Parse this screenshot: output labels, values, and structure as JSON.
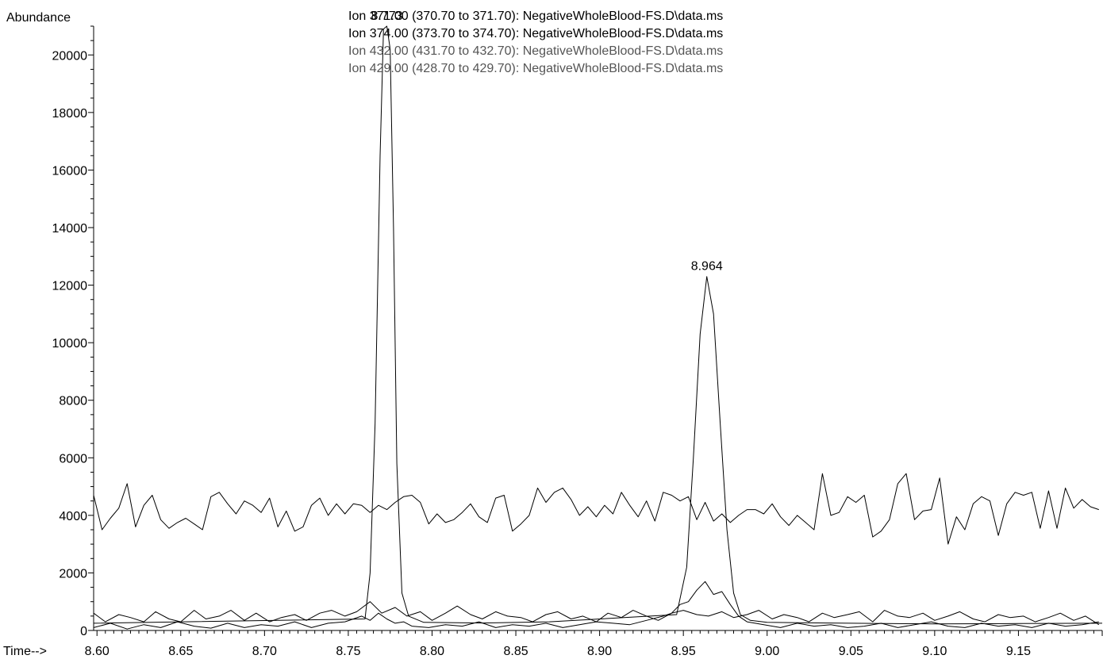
{
  "chart_data": {
    "type": "line",
    "ylabel": "Abundance",
    "xlabel": "Time-->",
    "xlim": [
      8.598,
      9.2
    ],
    "ylim": [
      0,
      21000
    ],
    "x_ticks": [
      "8.60",
      "8.65",
      "8.70",
      "8.75",
      "8.80",
      "8.85",
      "8.90",
      "8.95",
      "9.00",
      "9.05",
      "9.10",
      "9.15"
    ],
    "y_ticks": [
      "0",
      "2000",
      "4000",
      "6000",
      "8000",
      "10000",
      "12000",
      "14000",
      "16000",
      "18000",
      "20000"
    ],
    "legend": [
      "Ion 371.00 (370.70 to 371.70): NegativeWholeBlood-FS.D\\data.ms",
      "Ion 374.00 (373.70 to 374.70): NegativeWholeBlood-FS.D\\data.ms",
      "Ion 432.00 (431.70 to 432.70): NegativeWholeBlood-FS.D\\data.ms",
      "Ion 429.00 (428.70 to 429.70): NegativeWholeBlood-FS.D\\data.ms"
    ],
    "peak_labels": [
      {
        "x": 8.773,
        "y": 21000,
        "text": "8.773"
      },
      {
        "x": 8.964,
        "y": 12300,
        "text": "8.964"
      }
    ],
    "series": [
      {
        "color": "#000000",
        "x": [
          8.598,
          8.76,
          8.763,
          8.766,
          8.769,
          8.771,
          8.773,
          8.775,
          8.777,
          8.779,
          8.782,
          8.786,
          8.795,
          8.83,
          8.87,
          8.946,
          8.952,
          8.956,
          8.96,
          8.964,
          8.968,
          8.972,
          8.976,
          8.98,
          8.984,
          8.99,
          9.0,
          9.05,
          9.1,
          9.15,
          9.2
        ],
        "values": [
          250,
          400,
          2000,
          7200,
          16500,
          20900,
          21000,
          20200,
          14000,
          5800,
          1300,
          500,
          280,
          260,
          300,
          550,
          2200,
          6000,
          10300,
          12300,
          11000,
          7200,
          3500,
          1300,
          550,
          350,
          280,
          250,
          230,
          240,
          250
        ]
      },
      {
        "color": "#000000",
        "x": [
          8.598,
          8.603,
          8.608,
          8.613,
          8.618,
          8.623,
          8.628,
          8.633,
          8.638,
          8.643,
          8.648,
          8.653,
          8.658,
          8.663,
          8.668,
          8.673,
          8.678,
          8.683,
          8.688,
          8.693,
          8.698,
          8.703,
          8.708,
          8.713,
          8.718,
          8.723,
          8.728,
          8.733,
          8.738,
          8.743,
          8.748,
          8.753,
          8.758,
          8.763,
          8.768,
          8.773,
          8.778,
          8.783,
          8.788,
          8.793,
          8.798,
          8.803,
          8.808,
          8.813,
          8.818,
          8.823,
          8.828,
          8.833,
          8.838,
          8.843,
          8.848,
          8.853,
          8.858,
          8.863,
          8.868,
          8.873,
          8.878,
          8.883,
          8.888,
          8.893,
          8.898,
          8.903,
          8.908,
          8.913,
          8.918,
          8.923,
          8.928,
          8.933,
          8.938,
          8.943,
          8.948,
          8.953,
          8.958,
          8.963,
          8.968,
          8.973,
          8.978,
          8.983,
          8.988,
          8.993,
          8.998,
          9.003,
          9.008,
          9.013,
          9.018,
          9.023,
          9.028,
          9.033,
          9.038,
          9.043,
          9.048,
          9.053,
          9.058,
          9.063,
          9.068,
          9.073,
          9.078,
          9.083,
          9.088,
          9.093,
          9.098,
          9.103,
          9.108,
          9.113,
          9.118,
          9.123,
          9.128,
          9.133,
          9.138,
          9.143,
          9.148,
          9.153,
          9.158,
          9.163,
          9.168,
          9.173,
          9.178,
          9.183,
          9.188,
          9.193,
          9.198
        ],
        "values": [
          4700,
          3500,
          3900,
          4250,
          5100,
          3600,
          4350,
          4700,
          3850,
          3550,
          3750,
          3900,
          3700,
          3500,
          4650,
          4800,
          4400,
          4050,
          4500,
          4350,
          4100,
          4600,
          3600,
          4150,
          3450,
          3600,
          4350,
          4600,
          4000,
          4400,
          4050,
          4400,
          4350,
          4100,
          4350,
          4200,
          4450,
          4650,
          4700,
          4450,
          3700,
          4050,
          3750,
          3850,
          4100,
          4400,
          3950,
          3750,
          4600,
          4700,
          3450,
          3700,
          4000,
          4950,
          4450,
          4800,
          4950,
          4550,
          4000,
          4300,
          3950,
          4350,
          4050,
          4800,
          4350,
          3950,
          4500,
          3800,
          4800,
          4700,
          4500,
          4650,
          3850,
          4450,
          3800,
          4050,
          3750,
          4000,
          4200,
          4200,
          4050,
          4400,
          3950,
          3650,
          4000,
          3750,
          3500,
          5450,
          4000,
          4100,
          4650,
          4450,
          4700,
          3250,
          3450,
          3850,
          5100,
          5450,
          3850,
          4150,
          4200,
          5300,
          3000,
          3950,
          3500,
          4400,
          4650,
          4500,
          3300,
          4400,
          4800,
          4700,
          4800,
          3550,
          4850,
          3550,
          4950,
          4250,
          4550,
          4300,
          4200
        ]
      },
      {
        "color": "#000000",
        "x": [
          8.598,
          8.608,
          8.618,
          8.628,
          8.638,
          8.648,
          8.658,
          8.668,
          8.678,
          8.688,
          8.698,
          8.708,
          8.718,
          8.728,
          8.738,
          8.748,
          8.758,
          8.763,
          8.768,
          8.773,
          8.778,
          8.783,
          8.788,
          8.798,
          8.808,
          8.818,
          8.828,
          8.838,
          8.848,
          8.858,
          8.868,
          8.878,
          8.888,
          8.898,
          8.908,
          8.918,
          8.928,
          8.938,
          8.943,
          8.948,
          8.953,
          8.958,
          8.963,
          8.968,
          8.973,
          8.978,
          8.983,
          8.988,
          8.998,
          9.008,
          9.018,
          9.028,
          9.038,
          9.048,
          9.058,
          9.068,
          9.078,
          9.088,
          9.098,
          9.108,
          9.118,
          9.128,
          9.138,
          9.148,
          9.158,
          9.168,
          9.178,
          9.188,
          9.198
        ],
        "values": [
          100,
          250,
          50,
          200,
          100,
          300,
          150,
          80,
          250,
          100,
          200,
          150,
          300,
          100,
          250,
          300,
          500,
          350,
          600,
          400,
          250,
          300,
          150,
          100,
          200,
          150,
          300,
          100,
          200,
          150,
          250,
          100,
          200,
          300,
          250,
          200,
          350,
          500,
          600,
          900,
          1000,
          1400,
          1700,
          1250,
          1350,
          900,
          500,
          300,
          200,
          100,
          250,
          150,
          200,
          100,
          150,
          250,
          100,
          200,
          300,
          150,
          100,
          250,
          150,
          200,
          100,
          250,
          150,
          200,
          300
        ]
      },
      {
        "color": "#000000",
        "x": [
          8.598,
          8.605,
          8.613,
          8.62,
          8.628,
          8.635,
          8.643,
          8.65,
          8.658,
          8.665,
          8.673,
          8.68,
          8.688,
          8.695,
          8.703,
          8.71,
          8.718,
          8.725,
          8.733,
          8.74,
          8.748,
          8.755,
          8.763,
          8.77,
          8.778,
          8.785,
          8.793,
          8.8,
          8.808,
          8.815,
          8.823,
          8.83,
          8.838,
          8.845,
          8.853,
          8.86,
          8.868,
          8.875,
          8.883,
          8.89,
          8.898,
          8.905,
          8.913,
          8.92,
          8.928,
          8.935,
          8.943,
          8.95,
          8.958,
          8.965,
          8.973,
          8.98,
          8.988,
          8.995,
          9.003,
          9.01,
          9.018,
          9.025,
          9.033,
          9.04,
          9.048,
          9.055,
          9.063,
          9.07,
          9.078,
          9.085,
          9.093,
          9.1,
          9.108,
          9.115,
          9.123,
          9.13,
          9.138,
          9.145,
          9.153,
          9.16,
          9.168,
          9.175,
          9.183,
          9.19,
          9.198
        ],
        "values": [
          600,
          300,
          550,
          450,
          300,
          650,
          400,
          300,
          700,
          400,
          500,
          700,
          350,
          600,
          300,
          450,
          550,
          350,
          600,
          700,
          500,
          650,
          1000,
          600,
          800,
          500,
          650,
          350,
          600,
          850,
          550,
          400,
          650,
          500,
          450,
          300,
          550,
          650,
          400,
          500,
          300,
          600,
          450,
          700,
          500,
          350,
          600,
          700,
          550,
          500,
          650,
          450,
          550,
          700,
          400,
          550,
          450,
          300,
          600,
          450,
          550,
          650,
          300,
          700,
          500,
          450,
          600,
          350,
          500,
          650,
          400,
          300,
          550,
          450,
          500,
          300,
          450,
          600,
          350,
          500,
          200
        ]
      }
    ]
  }
}
